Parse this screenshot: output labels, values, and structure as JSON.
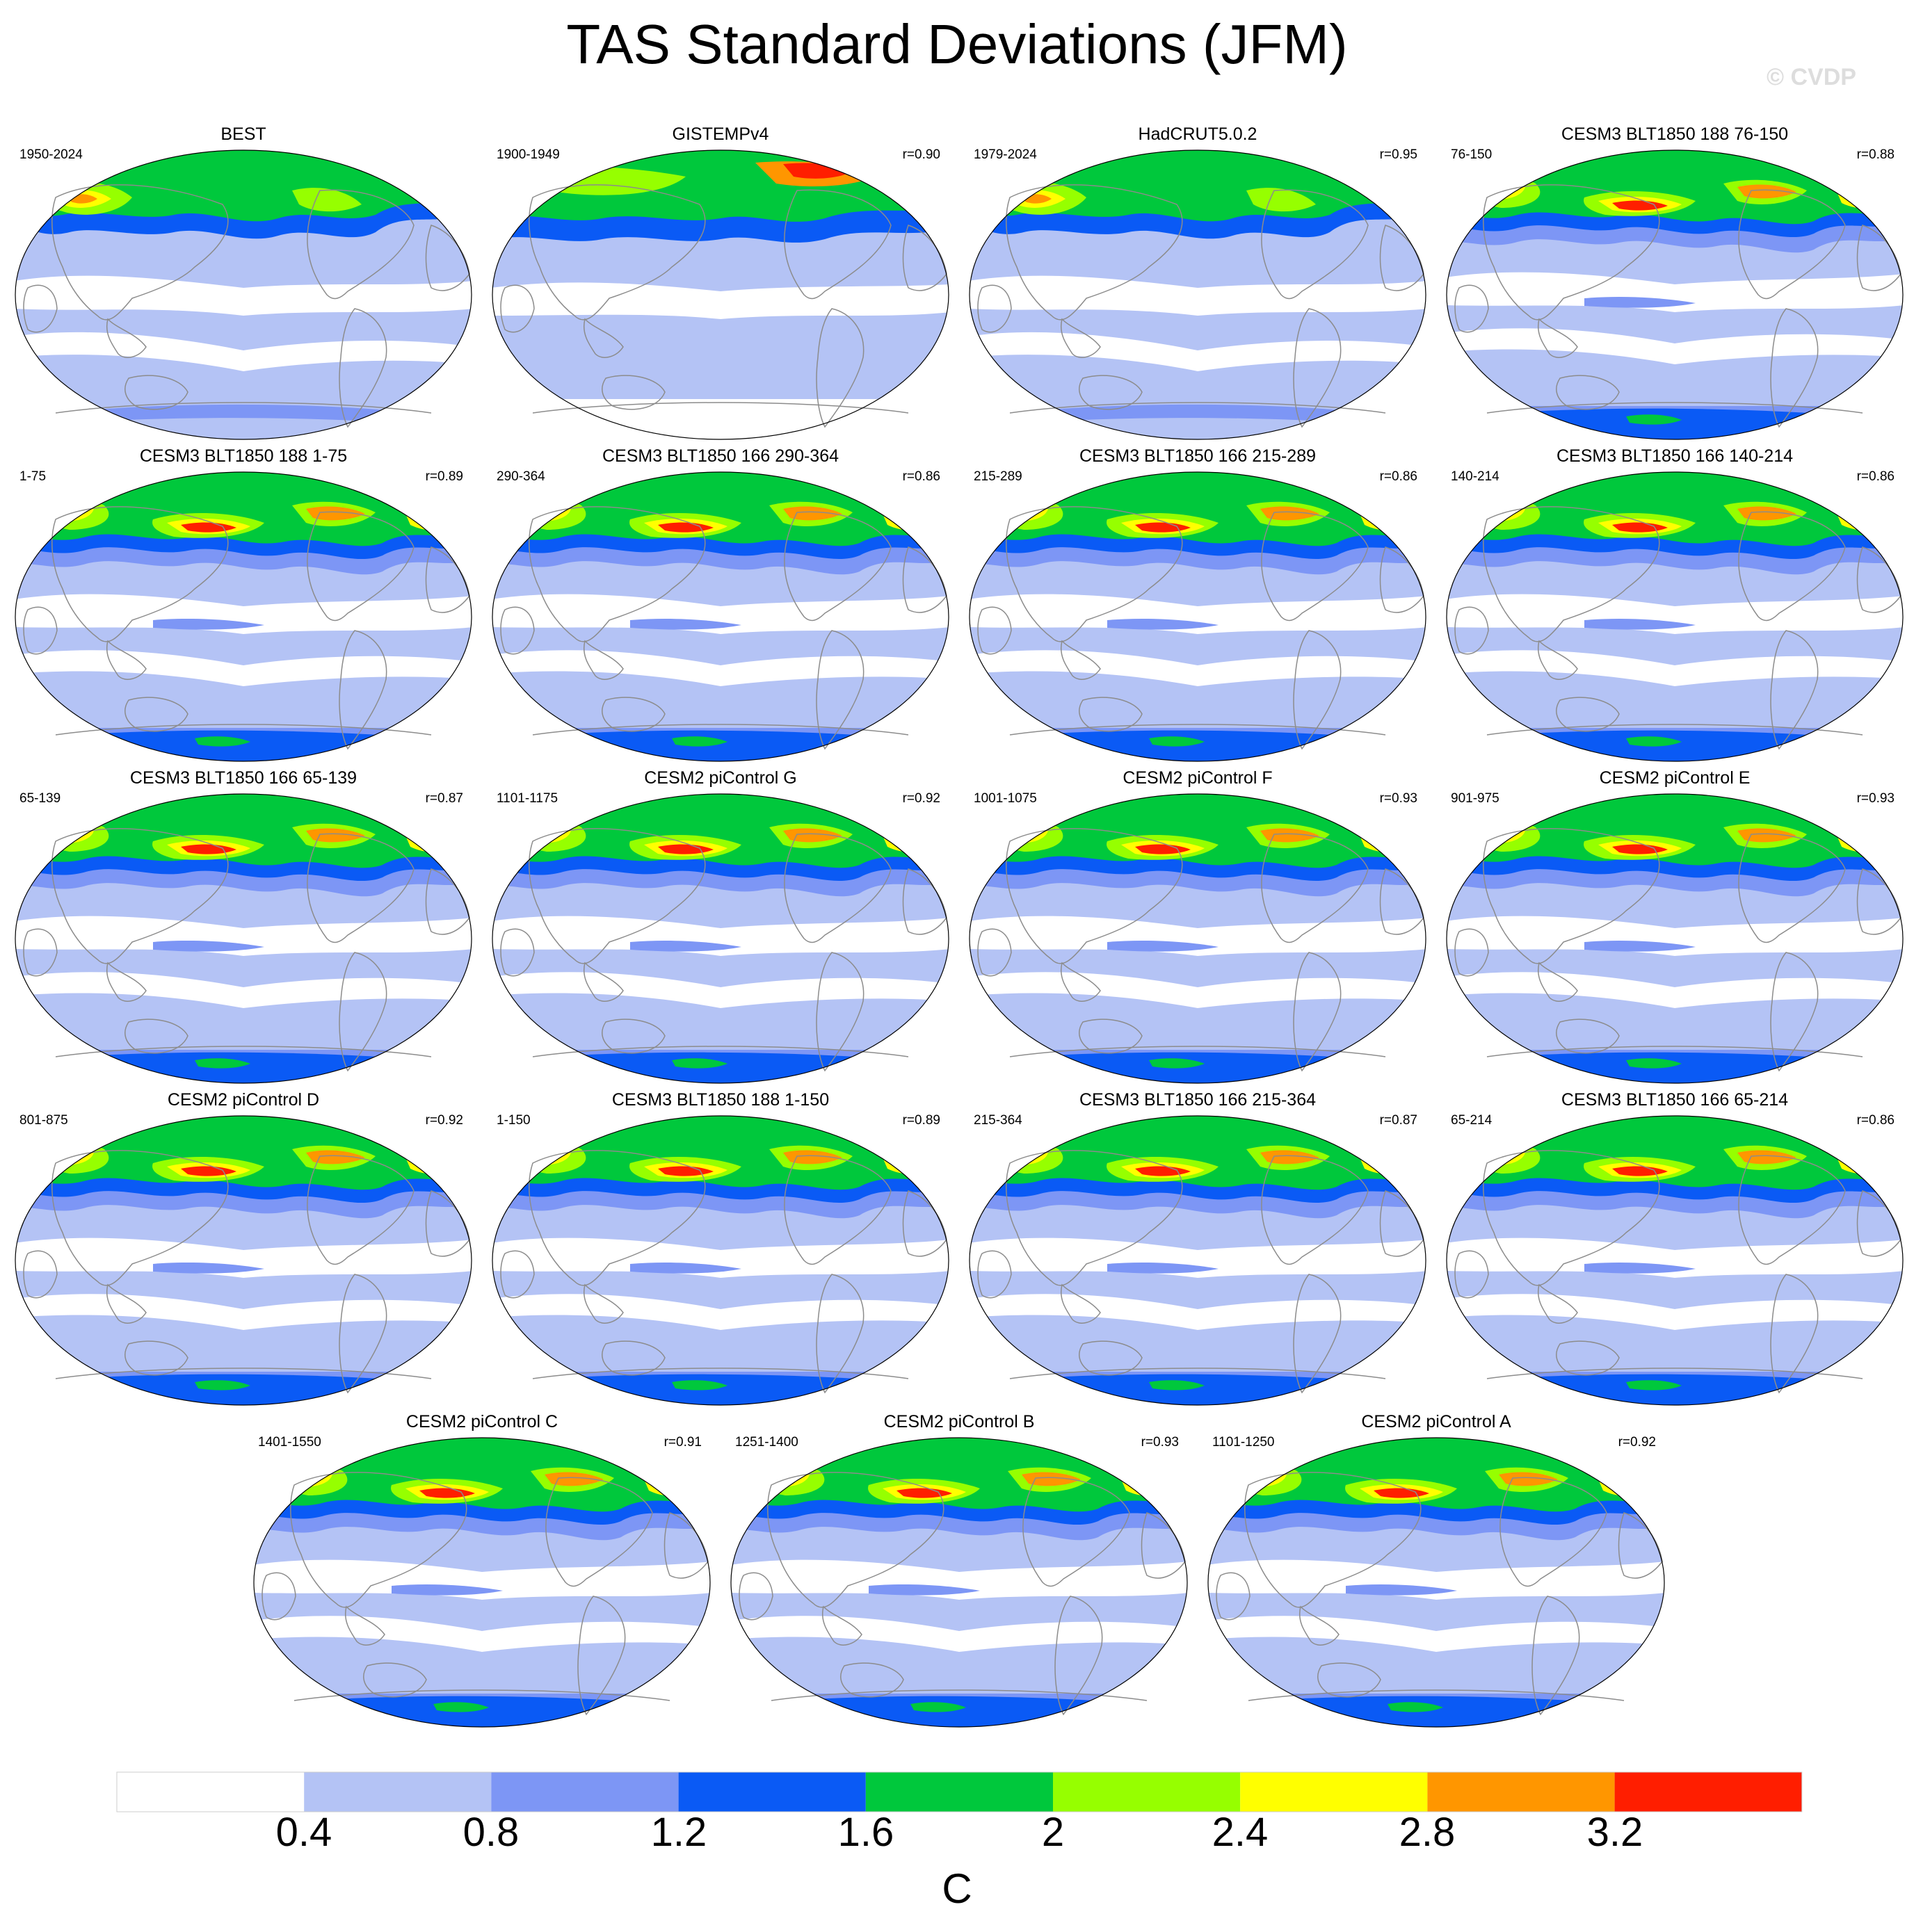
{
  "title": "TAS Standard Deviations (JFM)",
  "watermark": "© CVDP",
  "units": "C",
  "colorbar": {
    "colors": [
      "#ffffff",
      "#b4c3f5",
      "#7d96f5",
      "#0a5af5",
      "#00c83c",
      "#96ff00",
      "#ffff00",
      "#ff9600",
      "#ff1e00"
    ],
    "labels": [
      "0.4",
      "0.8",
      "1.2",
      "1.6",
      "2",
      "2.4",
      "2.8",
      "3.2"
    ]
  },
  "panels": [
    {
      "title": "BEST",
      "period": "1950-2024",
      "r": ""
    },
    {
      "title": "GISTEMPv4",
      "period": "1900-1949",
      "r": "r=0.90"
    },
    {
      "title": "HadCRUT5.0.2",
      "period": "1979-2024",
      "r": "r=0.95"
    },
    {
      "title": "CESM3 BLT1850 188 76-150",
      "period": "76-150",
      "r": "r=0.88"
    },
    {
      "title": "CESM3 BLT1850 188 1-75",
      "period": "1-75",
      "r": "r=0.89"
    },
    {
      "title": "CESM3 BLT1850 166 290-364",
      "period": "290-364",
      "r": "r=0.86"
    },
    {
      "title": "CESM3 BLT1850 166 215-289",
      "period": "215-289",
      "r": "r=0.86"
    },
    {
      "title": "CESM3 BLT1850 166 140-214",
      "period": "140-214",
      "r": "r=0.86"
    },
    {
      "title": "CESM3 BLT1850 166 65-139",
      "period": "65-139",
      "r": "r=0.87"
    },
    {
      "title": "CESM2 piControl G",
      "period": "1101-1175",
      "r": "r=0.92"
    },
    {
      "title": "CESM2 piControl F",
      "period": "1001-1075",
      "r": "r=0.93"
    },
    {
      "title": "CESM2 piControl E",
      "period": "901-975",
      "r": "r=0.93"
    },
    {
      "title": "CESM2 piControl D",
      "period": "801-875",
      "r": "r=0.92"
    },
    {
      "title": "CESM3 BLT1850 188 1-150",
      "period": "1-150",
      "r": "r=0.89"
    },
    {
      "title": "CESM3 BLT1850 166 215-364",
      "period": "215-364",
      "r": "r=0.87"
    },
    {
      "title": "CESM3 BLT1850 166 65-214",
      "period": "65-214",
      "r": "r=0.86"
    },
    {
      "title": "CESM2 piControl C",
      "period": "1401-1550",
      "r": "r=0.91"
    },
    {
      "title": "CESM2 piControl B",
      "period": "1251-1400",
      "r": "r=0.93"
    },
    {
      "title": "CESM2 piControl A",
      "period": "1101-1250",
      "r": "r=0.92"
    }
  ]
}
